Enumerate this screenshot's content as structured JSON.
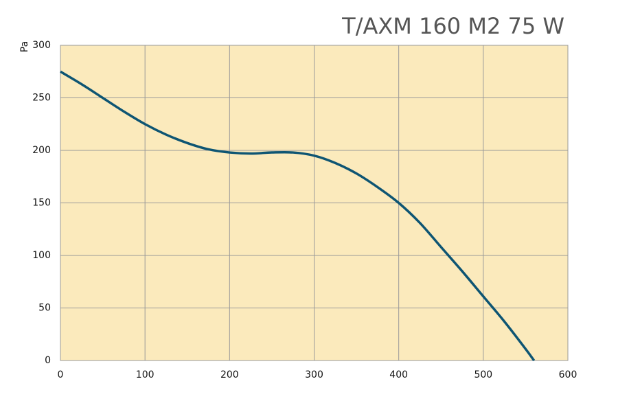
{
  "chart_data": {
    "type": "line",
    "title": "T/AXM 160 M2 75 W",
    "y_label": "Pa",
    "x": [
      0,
      25,
      50,
      75,
      100,
      125,
      150,
      175,
      200,
      225,
      250,
      275,
      300,
      325,
      350,
      375,
      400,
      425,
      450,
      475,
      500,
      525,
      550,
      560
    ],
    "series": [
      {
        "color": "#0e5573",
        "values": [
          275,
          263,
          250,
          237,
          225,
          215,
          207,
          201,
          198,
          197,
          198,
          198,
          195,
          188,
          178,
          165,
          150,
          131,
          108,
          85,
          61,
          37,
          11,
          0
        ]
      }
    ],
    "xlim": [
      0,
      600
    ],
    "xticks": [
      0,
      100,
      200,
      300,
      400,
      500,
      600
    ],
    "ylim": [
      0,
      300
    ],
    "yticks": [
      0,
      50,
      100,
      150,
      200,
      250,
      300
    ],
    "grid": true,
    "background": "#fbeabc"
  }
}
